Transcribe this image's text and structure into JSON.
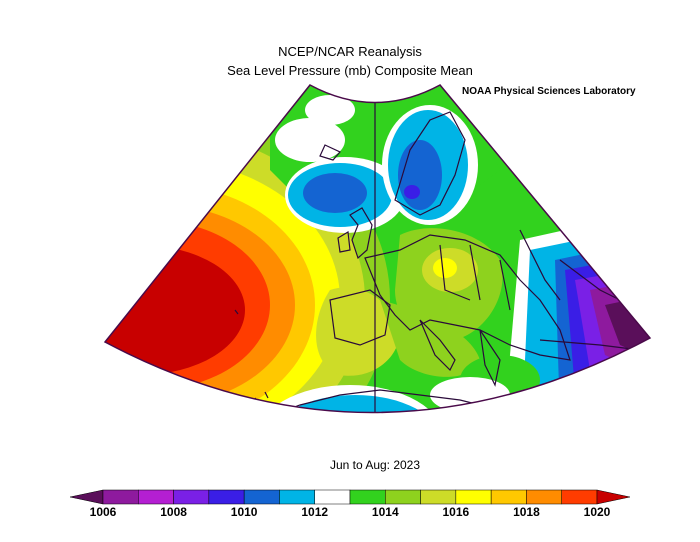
{
  "header": {
    "title": "NCEP/NCAR Reanalysis",
    "subtitle": "Sea Level Pressure (mb) Composite Mean",
    "credit": "NOAA Physical Sciences Laboratory"
  },
  "footer": {
    "period": "Jun to Aug: 2023"
  },
  "colors": {
    "levels": [
      "#5a0f5a",
      "#8e1a9e",
      "#b41fd2",
      "#7a20e6",
      "#3a1ee6",
      "#1464d2",
      "#00b4e6",
      "#ffffff",
      "#32d21e",
      "#8ed21e",
      "#cddc28",
      "#ffff00",
      "#ffc800",
      "#ff8c00",
      "#ff3c00",
      "#c80000"
    ],
    "land_outline": "#2a0a3a",
    "frame": "#4a0a4a"
  },
  "colorbar": {
    "labels": [
      "1006",
      "1008",
      "1010",
      "1012",
      "1014",
      "1016",
      "1018",
      "1020"
    ]
  }
}
